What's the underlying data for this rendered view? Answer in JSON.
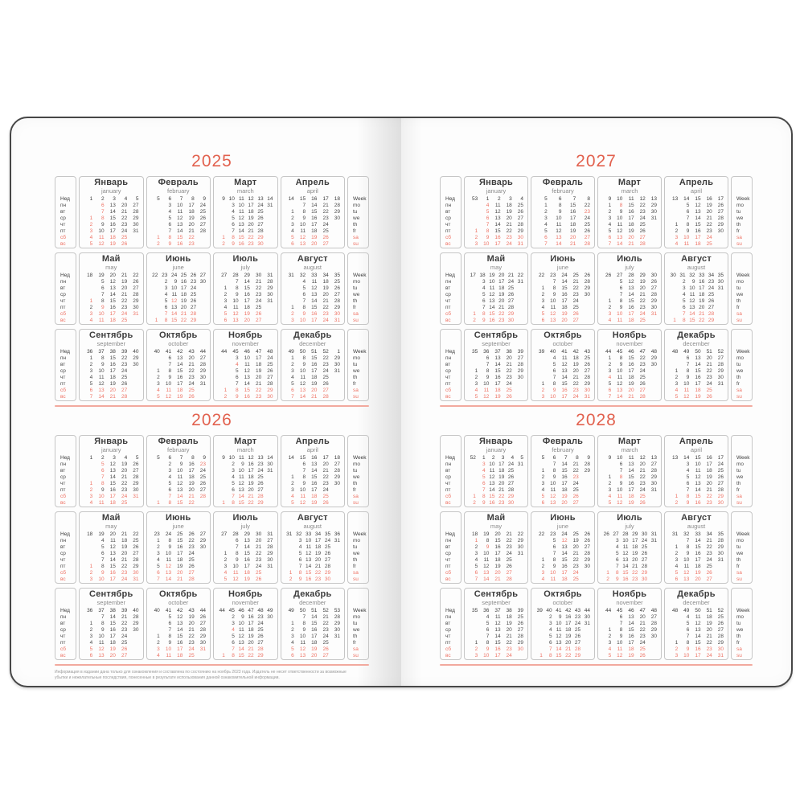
{
  "calendar": {
    "pages": [
      {
        "side": "left",
        "years": [
          "2025",
          "2026"
        ],
        "footer": [
          "Информация в издании дана только для ознакомления и составлена по состоянию на ноябрь 2023 года. Издатель не несет ответственности за возможные",
          "убытки и нежелательные последствия, понесенные в результате использования данной ознакомительной информации."
        ]
      },
      {
        "side": "right",
        "years": [
          "2027",
          "2028"
        ],
        "footer": []
      }
    ],
    "months": [
      {
        "ru": "Январь",
        "en": "january"
      },
      {
        "ru": "Февраль",
        "en": "february"
      },
      {
        "ru": "Март",
        "en": "march"
      },
      {
        "ru": "Апрель",
        "en": "april"
      },
      {
        "ru": "Май",
        "en": "may"
      },
      {
        "ru": "Июнь",
        "en": "june"
      },
      {
        "ru": "Июль",
        "en": "july"
      },
      {
        "ru": "Август",
        "en": "august"
      },
      {
        "ru": "Сентябрь",
        "en": "september"
      },
      {
        "ru": "Октябрь",
        "en": "october"
      },
      {
        "ru": "Ноябрь",
        "en": "november"
      },
      {
        "ru": "Декабрь",
        "en": "december"
      }
    ],
    "week_label_ru": "Нед",
    "week_label_en": "Week",
    "weekday_labels_ru": [
      "пн",
      "вт",
      "ср",
      "чт",
      "пт",
      "сб",
      "вс"
    ],
    "weekday_labels_en": [
      "mo",
      "tu",
      "we",
      "th",
      "fr",
      "sa",
      "su"
    ],
    "months_per_row": 4,
    "week_start": "monday",
    "week_numbering": "iso",
    "holidays_mm_dd": [
      "01-01",
      "01-02",
      "01-03",
      "01-04",
      "01-05",
      "01-06",
      "01-07",
      "01-08",
      "02-23",
      "03-08",
      "05-01",
      "05-09",
      "06-12",
      "11-04"
    ]
  },
  "colors": {
    "accent": "#e2614e",
    "date_red": "#ee7365",
    "text_dark": "#3c3c3c",
    "text_mid": "#4a4a4a",
    "text_gray": "#8a8a8a",
    "border": "#c6c6c6",
    "year_rule": "#f2a99e",
    "page_bg": "#fdfdfd",
    "cover_edge": "#474747"
  }
}
